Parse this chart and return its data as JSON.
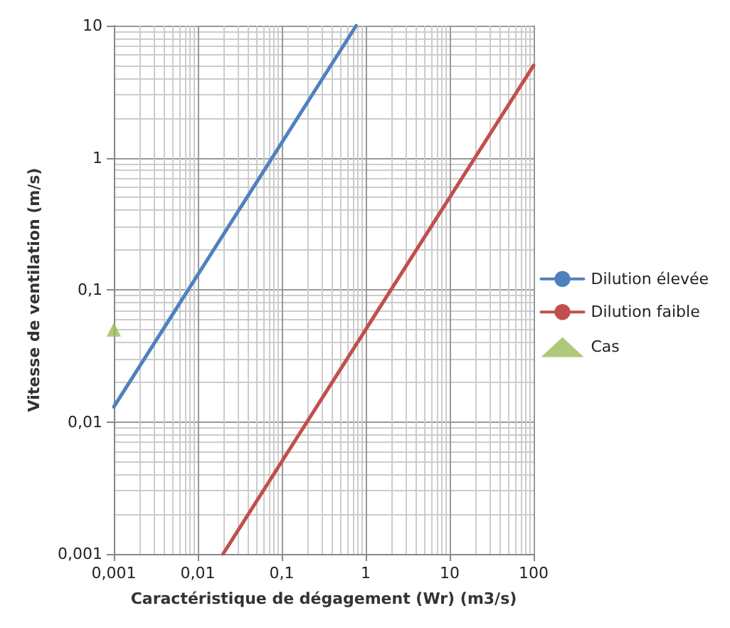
{
  "chart_data": {
    "type": "line",
    "xlabel": "Caractéristique de dégagement (Wr) (m3/s)",
    "ylabel": "Vitesse de ventilation (m/s)",
    "log": "xy",
    "grid": true,
    "legend": "right",
    "marker": "none",
    "line_style": "solid",
    "xlim": [
      0.001,
      100
    ],
    "xticks": [
      {
        "value": 0.001,
        "label": "0,001"
      },
      {
        "value": 0.01,
        "label": "0,01"
      },
      {
        "value": 0.1,
        "label": "0,1"
      },
      1,
      10,
      100
    ],
    "ylim": [
      0.001,
      10
    ],
    "yticks": [
      {
        "value": 0.001,
        "label": "0,001"
      },
      {
        "value": 0.01,
        "label": "0,01"
      },
      {
        "value": 0.1,
        "label": "0,1"
      },
      1,
      10
    ],
    "series": [
      {
        "name": "Dilution élevée",
        "color": "#4f81bd",
        "x": [
          0.001,
          0.77
        ],
        "values": [
          0.013,
          10
        ]
      },
      {
        "name": "Dilution faible",
        "color": "#c0504d",
        "x": [
          0.02,
          100
        ],
        "values": [
          0.001,
          5
        ]
      },
      {
        "name": "Cas",
        "type": "scatter",
        "marker": "triangle",
        "color": "#9bbb59",
        "x": [
          0.001
        ],
        "values": [
          0.05
        ]
      }
    ]
  }
}
